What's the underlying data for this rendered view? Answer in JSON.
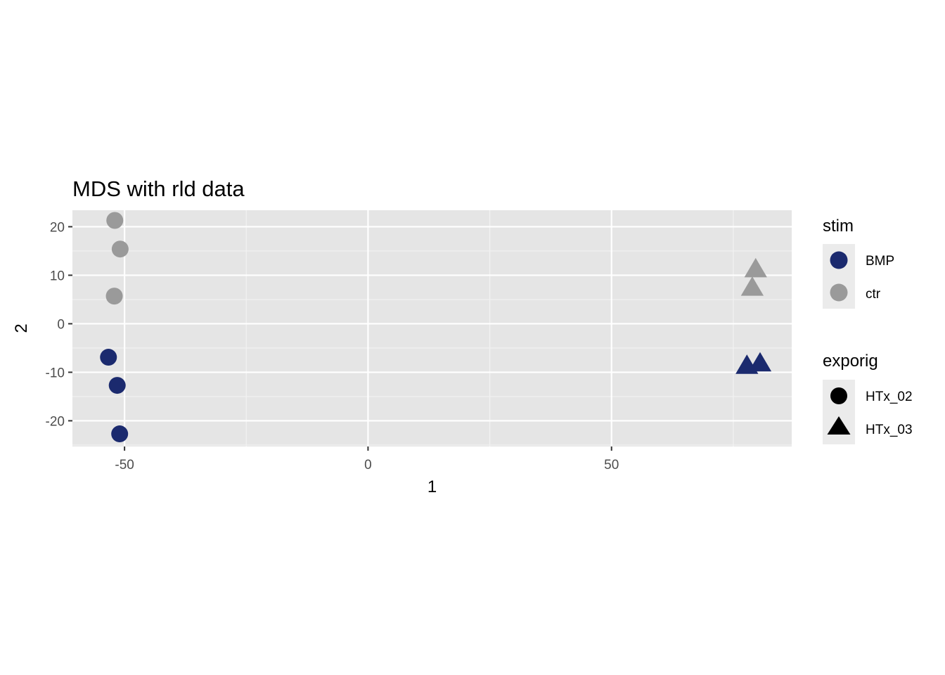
{
  "chart_data": {
    "type": "scatter",
    "title": "MDS with rld data",
    "xlabel": "1",
    "ylabel": "2",
    "xlim": [
      -60.7,
      87
    ],
    "ylim": [
      -25.3,
      23.4
    ],
    "x_ticks": [
      -50,
      0,
      50
    ],
    "x_tick_labels": [
      "-50",
      "0",
      "50"
    ],
    "y_ticks": [
      -20,
      -10,
      0,
      10,
      20
    ],
    "y_tick_labels": [
      "-20",
      "-10",
      "0",
      "10",
      "20"
    ],
    "grid": true,
    "legend_position": "right",
    "color_legend": {
      "title": "stim",
      "items": [
        {
          "label": "BMP",
          "color": "#1b2a6e"
        },
        {
          "label": "ctr",
          "color": "#9a9a9a"
        }
      ]
    },
    "shape_legend": {
      "title": "exporig",
      "items": [
        {
          "label": "HTx_02",
          "shape": "circle"
        },
        {
          "label": "HTx_03",
          "shape": "triangle"
        }
      ]
    },
    "points": [
      {
        "x": -52.0,
        "y": 21.3,
        "stim": "ctr",
        "exporig": "HTx_02"
      },
      {
        "x": -50.9,
        "y": 15.4,
        "stim": "ctr",
        "exporig": "HTx_02"
      },
      {
        "x": -52.1,
        "y": 5.7,
        "stim": "ctr",
        "exporig": "HTx_02"
      },
      {
        "x": -53.3,
        "y": -6.9,
        "stim": "BMP",
        "exporig": "HTx_02"
      },
      {
        "x": -51.5,
        "y": -12.7,
        "stim": "BMP",
        "exporig": "HTx_02"
      },
      {
        "x": -51.0,
        "y": -22.7,
        "stim": "BMP",
        "exporig": "HTx_02"
      },
      {
        "x": 79.6,
        "y": 11.1,
        "stim": "ctr",
        "exporig": "HTx_03"
      },
      {
        "x": 78.9,
        "y": 7.3,
        "stim": "ctr",
        "exporig": "HTx_03"
      },
      {
        "x": 77.8,
        "y": -8.8,
        "stim": "BMP",
        "exporig": "HTx_03"
      },
      {
        "x": 80.5,
        "y": -8.3,
        "stim": "BMP",
        "exporig": "HTx_03"
      }
    ]
  }
}
